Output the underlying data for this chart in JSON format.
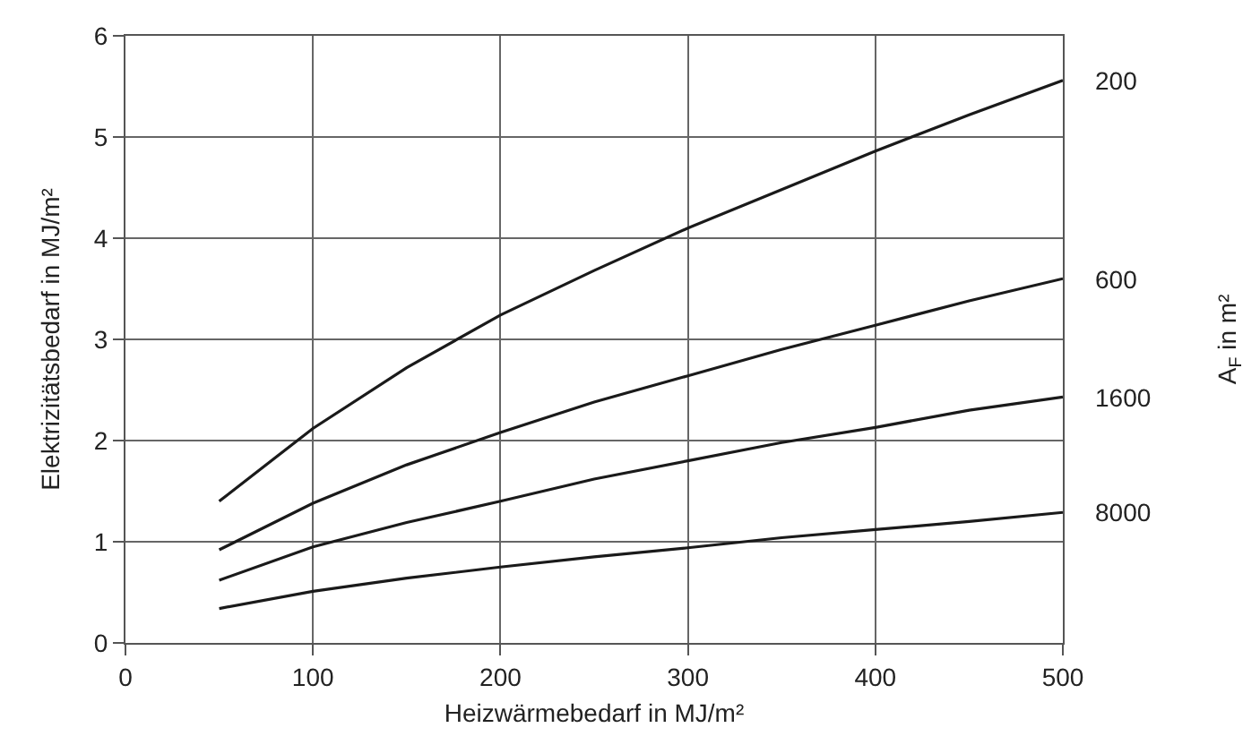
{
  "chart_data": {
    "type": "line",
    "xlabel": "Heizwärmebedarf in MJ/m²",
    "ylabel": "Elektrizitätsbedarf in MJ/m²",
    "legend_title": "A$_{F}$ in m²",
    "x": [
      50,
      100,
      150,
      200,
      250,
      300,
      350,
      400,
      450,
      500
    ],
    "series": [
      {
        "name": "200",
        "color": "#1a1a1a",
        "values": [
          1.4,
          2.12,
          2.72,
          3.24,
          3.68,
          4.1,
          4.48,
          4.86,
          5.22,
          5.56
        ]
      },
      {
        "name": "600",
        "color": "#1a1a1a",
        "values": [
          0.92,
          1.38,
          1.76,
          2.08,
          2.38,
          2.64,
          2.9,
          3.14,
          3.38,
          3.6
        ]
      },
      {
        "name": "1600",
        "color": "#1a1a1a",
        "values": [
          0.62,
          0.95,
          1.19,
          1.4,
          1.62,
          1.8,
          1.98,
          2.13,
          2.3,
          2.43
        ]
      },
      {
        "name": "8000",
        "color": "#1a1a1a",
        "values": [
          0.34,
          0.51,
          0.64,
          0.75,
          0.85,
          0.94,
          1.04,
          1.12,
          1.2,
          1.29
        ]
      }
    ],
    "xlim": [
      0,
      500
    ],
    "xticks": [
      0,
      100,
      200,
      300,
      400,
      500
    ],
    "ylim": [
      0,
      6
    ],
    "yticks": [
      0,
      1,
      2,
      3,
      4,
      5,
      6
    ],
    "grid": true,
    "legend": false,
    "marker": "none",
    "line_style": "solid"
  }
}
